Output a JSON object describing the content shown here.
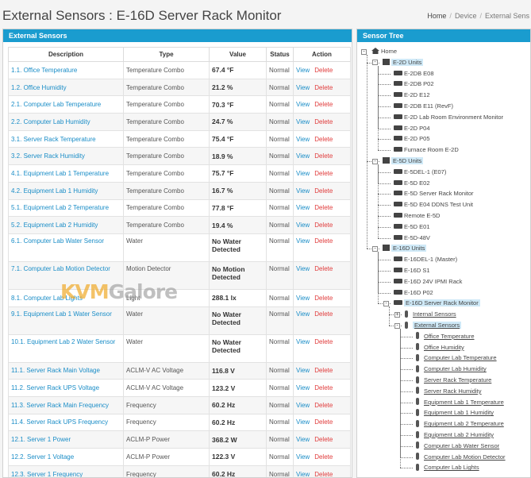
{
  "header": {
    "title": "External Sensors : E-16D Server Rack Monitor",
    "breadcrumb": [
      "Home",
      "Device",
      "External Sens"
    ]
  },
  "left_panel": {
    "title": "External Sensors",
    "columns": [
      "Description",
      "Type",
      "Value",
      "Status",
      "Action"
    ],
    "view_label": "View",
    "delete_label": "Delete",
    "rows": [
      {
        "desc": "1.1. Office Temperature",
        "type": "Temperature Combo",
        "value": "67.4 °F",
        "status": "Normal"
      },
      {
        "desc": "1.2. Office Humidity",
        "type": "Temperature Combo",
        "value": "21.2 %",
        "status": "Normal"
      },
      {
        "desc": "2.1. Computer Lab Temperature",
        "type": "Temperature Combo",
        "value": "70.3 °F",
        "status": "Normal"
      },
      {
        "desc": "2.2. Computer Lab Humidity",
        "type": "Temperature Combo",
        "value": "24.7 %",
        "status": "Normal"
      },
      {
        "desc": "3.1. Server Rack Temperature",
        "type": "Temperature Combo",
        "value": "75.4 °F",
        "status": "Normal"
      },
      {
        "desc": "3.2. Server Rack Humidity",
        "type": "Temperature Combo",
        "value": "18.9 %",
        "status": "Normal"
      },
      {
        "desc": "4.1. Equipment Lab 1 Temperature",
        "type": "Temperature Combo",
        "value": "75.7 °F",
        "status": "Normal"
      },
      {
        "desc": "4.2. Equipment Lab 1 Humidity",
        "type": "Temperature Combo",
        "value": "16.7 %",
        "status": "Normal"
      },
      {
        "desc": "5.1. Equipment Lab 2 Temperature",
        "type": "Temperature Combo",
        "value": "77.8 °F",
        "status": "Normal"
      },
      {
        "desc": "5.2. Equipment Lab 2 Humidity",
        "type": "Temperature Combo",
        "value": "19.4 %",
        "status": "Normal"
      },
      {
        "desc": "6.1. Computer Lab Water Sensor",
        "type": "Water",
        "value": "No Water Detected",
        "status": "Normal"
      },
      {
        "desc": "7.1. Computer Lab Motion Detector",
        "type": "Motion Detector",
        "value": "No Motion Detected",
        "status": "Normal"
      },
      {
        "desc": "8.1. Computer Lab Lights",
        "type": "Light",
        "value": "288.1 lx",
        "status": "Normal"
      },
      {
        "desc": "9.1. Equipment Lab 1 Water Sensor",
        "type": "Water",
        "value": "No Water Detected",
        "status": "Normal"
      },
      {
        "desc": "10.1. Equipment Lab 2 Water Sensor",
        "type": "Water",
        "value": "No Water Detected",
        "status": "Normal"
      },
      {
        "desc": "11.1. Server Rack Main Voltage",
        "type": "ACLM-V AC Voltage",
        "value": "116.8 V",
        "status": "Normal"
      },
      {
        "desc": "11.2. Server Rack UPS Voltage",
        "type": "ACLM-V AC Voltage",
        "value": "123.2 V",
        "status": "Normal"
      },
      {
        "desc": "11.3. Server Rack Main Frequency",
        "type": "Frequency",
        "value": "60.2 Hz",
        "status": "Normal"
      },
      {
        "desc": "11.4. Server Rack UPS Frequency",
        "type": "Frequency",
        "value": "60.2 Hz",
        "status": "Normal"
      },
      {
        "desc": "12.1. Server 1 Power",
        "type": "ACLM-P Power",
        "value": "368.2 W",
        "status": "Normal"
      },
      {
        "desc": "12.2. Server 1 Voltage",
        "type": "ACLM-P Power",
        "value": "122.3 V",
        "status": "Normal"
      },
      {
        "desc": "12.3. Server 1 Frequency",
        "type": "Frequency",
        "value": "60.2 Hz",
        "status": "Normal"
      }
    ]
  },
  "right_panel": {
    "title": "Sensor Tree",
    "nodes": [
      {
        "label": "Home",
        "kind": "home",
        "level": 0,
        "toggle": "-"
      },
      {
        "label": "E-2D Units",
        "kind": "group",
        "level": 1,
        "toggle": "-",
        "highlight": true
      },
      {
        "label": "E-2DB E08",
        "kind": "device",
        "level": 2
      },
      {
        "label": "E-2DB P02",
        "kind": "device",
        "level": 2
      },
      {
        "label": "E-2D E12",
        "kind": "device",
        "level": 2
      },
      {
        "label": "E-2DB E11 (RevF)",
        "kind": "device",
        "level": 2
      },
      {
        "label": "E-2D Lab Room Environment Monitor",
        "kind": "device",
        "level": 2
      },
      {
        "label": "E-2D P04",
        "kind": "device",
        "level": 2
      },
      {
        "label": "E-2D P05",
        "kind": "device",
        "level": 2
      },
      {
        "label": "Furnace Room E-2D",
        "kind": "device",
        "level": 2
      },
      {
        "label": "E-5D Units",
        "kind": "group",
        "level": 1,
        "toggle": "-",
        "highlight": true
      },
      {
        "label": "E-5DEL-1 (E07)",
        "kind": "device",
        "level": 2
      },
      {
        "label": "E-5D E02",
        "kind": "device",
        "level": 2
      },
      {
        "label": "E-5D Server Rack Monitor",
        "kind": "device",
        "level": 2
      },
      {
        "label": "E-5D E04 DDNS Test Unit",
        "kind": "device",
        "level": 2
      },
      {
        "label": "Remote E-5D",
        "kind": "device",
        "level": 2
      },
      {
        "label": "E-5D E01",
        "kind": "device",
        "level": 2
      },
      {
        "label": "E-5D-48V",
        "kind": "device",
        "level": 2
      },
      {
        "label": "E-16D Units",
        "kind": "group",
        "level": 1,
        "toggle": "-",
        "highlight": true
      },
      {
        "label": "E-16DEL-1 (Master)",
        "kind": "device",
        "level": 2
      },
      {
        "label": "E-16D S1",
        "kind": "device",
        "level": 2
      },
      {
        "label": "E-16D 24V IPMI Rack",
        "kind": "device",
        "level": 2
      },
      {
        "label": "E-16D P02",
        "kind": "device",
        "level": 2
      },
      {
        "label": "E-16D Server Rack Monitor",
        "kind": "device",
        "level": 2,
        "toggle": "-",
        "highlight": true
      },
      {
        "label": "Internal Sensors",
        "kind": "sensor",
        "level": 3,
        "toggle": "+",
        "underline": true
      },
      {
        "label": "External Sensors",
        "kind": "sensor",
        "level": 3,
        "toggle": "-",
        "underline": true,
        "highlight": true
      },
      {
        "label": "Office Temperature",
        "kind": "sensor",
        "level": 4,
        "underline": true
      },
      {
        "label": "Office Humidity",
        "kind": "sensor",
        "level": 4,
        "underline": true
      },
      {
        "label": "Computer Lab Temperature",
        "kind": "sensor",
        "level": 4,
        "underline": true
      },
      {
        "label": "Computer Lab Humidity",
        "kind": "sensor",
        "level": 4,
        "underline": true
      },
      {
        "label": "Server Rack Temperature",
        "kind": "sensor",
        "level": 4,
        "underline": true
      },
      {
        "label": "Server Rack Humidity",
        "kind": "sensor",
        "level": 4,
        "underline": true
      },
      {
        "label": "Equipment Lab 1 Temperature",
        "kind": "sensor",
        "level": 4,
        "underline": true
      },
      {
        "label": "Equipment Lab 1 Humidity",
        "kind": "sensor",
        "level": 4,
        "underline": true
      },
      {
        "label": "Equipment Lab 2 Temperature",
        "kind": "sensor",
        "level": 4,
        "underline": true
      },
      {
        "label": "Equipment Lab 2 Humidity",
        "kind": "sensor",
        "level": 4,
        "underline": true
      },
      {
        "label": "Computer Lab Water Sensor",
        "kind": "sensor",
        "level": 4,
        "underline": true
      },
      {
        "label": "Computer Lab Motion Detector",
        "kind": "sensor",
        "level": 4,
        "underline": true
      },
      {
        "label": "Computer Lab Lights",
        "kind": "sensor",
        "level": 4,
        "underline": true
      }
    ]
  },
  "watermark": {
    "part1": "KVM",
    "part2": "Galore"
  }
}
